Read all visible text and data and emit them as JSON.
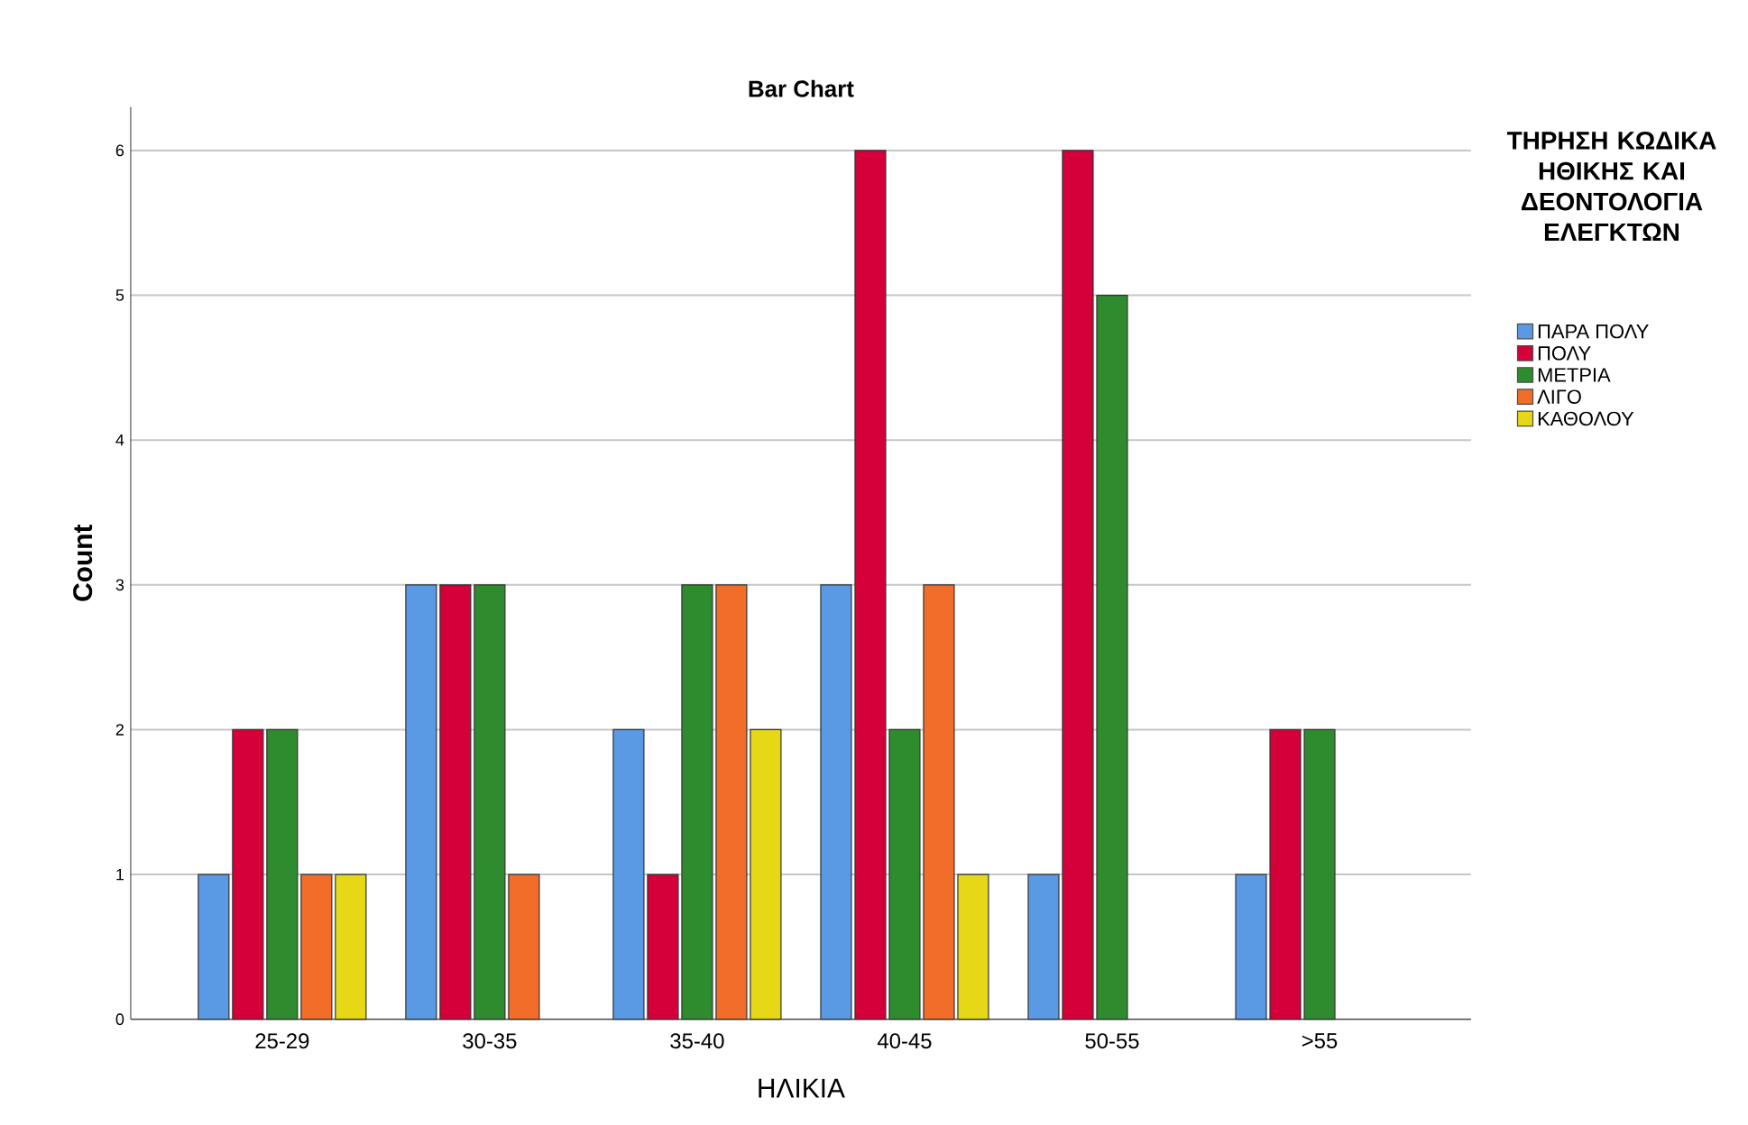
{
  "chart_data": {
    "type": "bar",
    "title": "Bar Chart",
    "xlabel": "ΗΛΙΚΙΑ",
    "ylabel": "Count",
    "legend_title": "ΤΗΡΗΣΗ ΚΩΔΙΚΑ ΗΘΙΚΗΣ ΚΑΙ ΔΕΟΝΤΟΛΟΓΙΑ ΕΛΕΓΚΤΩΝ",
    "categories": [
      "25-29",
      "30-35",
      "35-40",
      "40-45",
      "50-55",
      ">55"
    ],
    "series": [
      {
        "name": "ΠΑΡΑ ΠΟΛΥ",
        "color": "#5a9ae5",
        "values": [
          1,
          3,
          2,
          3,
          1,
          1
        ]
      },
      {
        "name": "ΠΟΛΥ",
        "color": "#d5003a",
        "values": [
          2,
          3,
          1,
          6,
          6,
          2
        ]
      },
      {
        "name": "ΜΕΤΡΙΑ",
        "color": "#2e8b2e",
        "values": [
          2,
          3,
          3,
          2,
          5,
          2
        ]
      },
      {
        "name": "ΛΙΓΟ",
        "color": "#f26d2a",
        "values": [
          1,
          1,
          3,
          3,
          null,
          null
        ]
      },
      {
        "name": "ΚΑΘΟΛΟΥ",
        "color": "#e6d817",
        "values": [
          1,
          null,
          2,
          1,
          null,
          null
        ]
      }
    ],
    "ylim": [
      0,
      6.3
    ],
    "yticks": [
      0,
      1,
      2,
      3,
      4,
      5,
      6
    ],
    "grid": "y",
    "legend": "right"
  }
}
